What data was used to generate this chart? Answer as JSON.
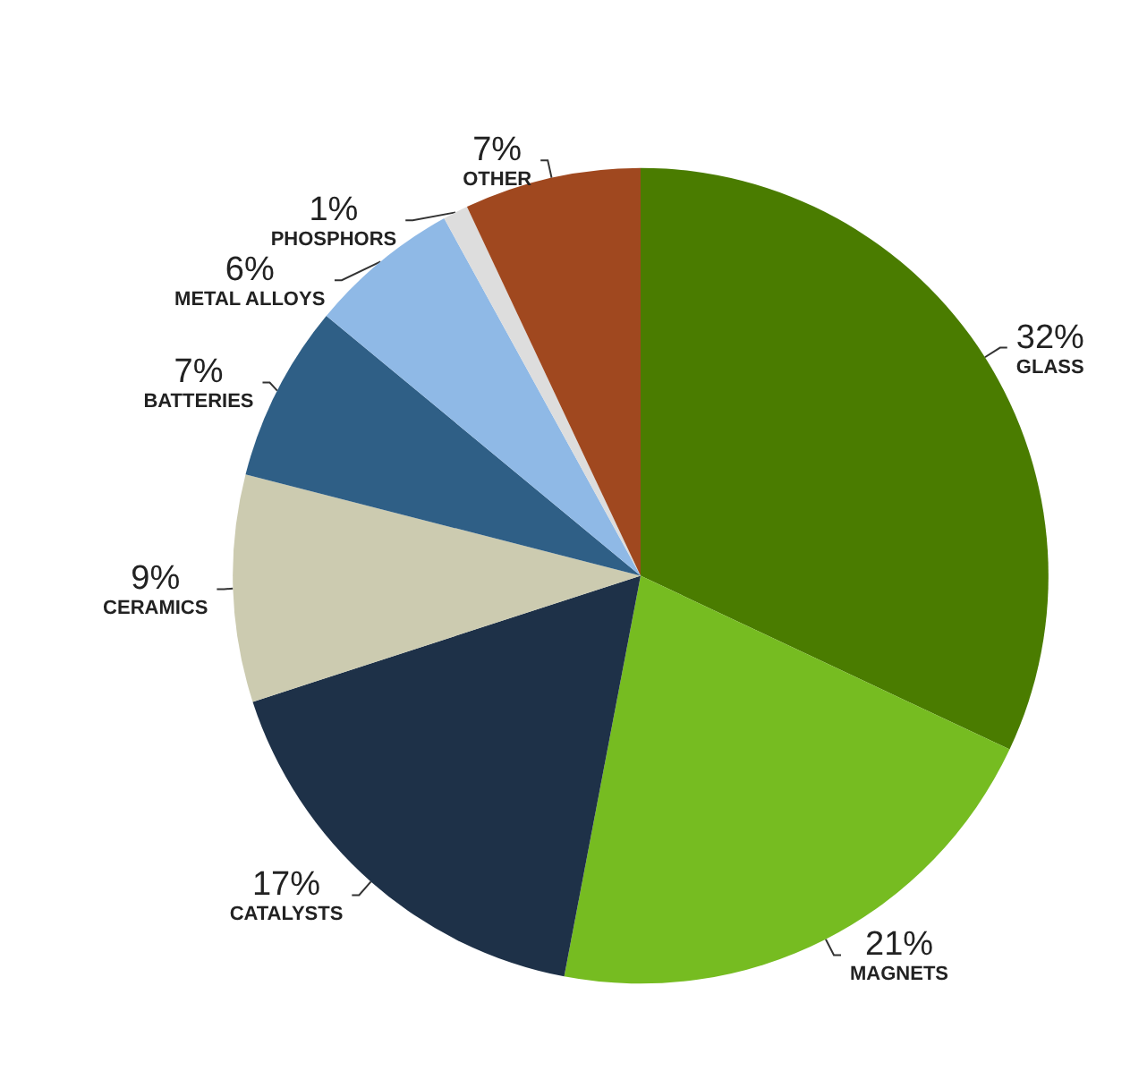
{
  "chart_data": {
    "type": "pie",
    "categories": [
      "GLASS",
      "MAGNETS",
      "CATALYSTS",
      "CERAMICS",
      "BATTERIES",
      "METAL ALLOYS",
      "PHOSPHORS",
      "OTHER"
    ],
    "values": [
      32,
      21,
      17,
      9,
      7,
      6,
      1,
      7
    ],
    "value_labels": [
      "32%",
      "21%",
      "17%",
      "9%",
      "7%",
      "6%",
      "1%",
      "7%"
    ],
    "colors": [
      "#4a7c00",
      "#76bc21",
      "#1e3148",
      "#cccbb0",
      "#2f5f86",
      "#8fb9e6",
      "#dddddd",
      "#a0481f"
    ],
    "legend": false
  }
}
